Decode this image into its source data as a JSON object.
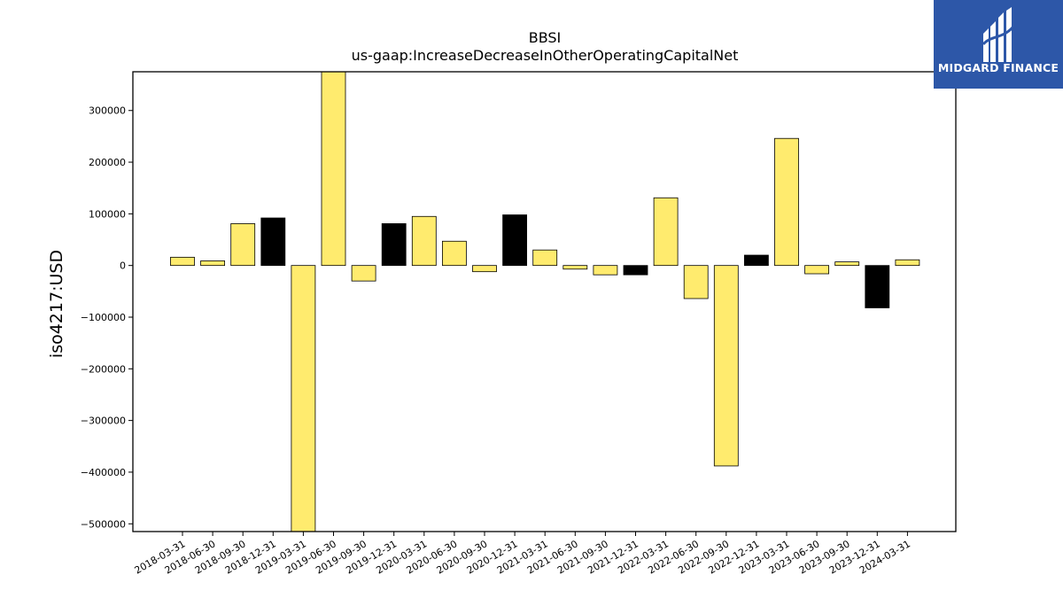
{
  "logo": {
    "text": "MIDGARD FINANCE"
  },
  "colors": {
    "positive_fill": "#ffeb6e",
    "highlight_fill": "#000000",
    "edge": "#000000"
  },
  "chart_data": {
    "type": "bar",
    "title": "BBSI",
    "subtitle": "us-gaap:IncreaseDecreaseInOtherOperatingCapitalNet",
    "ylabel": "iso4217:USD",
    "xlabel": "",
    "ylim": [
      -515000,
      375000
    ],
    "yticks": [
      300000,
      200000,
      100000,
      0,
      -100000,
      -200000,
      -300000,
      -400000,
      -500000
    ],
    "ytick_labels": [
      "300000",
      "200000",
      "100000",
      "0",
      "−100000",
      "−200000",
      "−300000",
      "−400000",
      "−500000"
    ],
    "grid": false,
    "categories": [
      "2018-03-31",
      "2018-06-30",
      "2018-09-30",
      "2018-12-31",
      "2019-03-31",
      "2019-06-30",
      "2019-09-30",
      "2019-12-31",
      "2020-03-31",
      "2020-06-30",
      "2020-09-30",
      "2020-12-31",
      "2021-03-31",
      "2021-06-30",
      "2021-09-30",
      "2021-12-31",
      "2022-03-31",
      "2022-06-30",
      "2022-09-30",
      "2022-12-31",
      "2023-03-31",
      "2023-06-30",
      "2023-09-30",
      "2023-12-31",
      "2024-03-31"
    ],
    "values": [
      16000,
      9000,
      81000,
      92000,
      -515000,
      375000,
      -30000,
      81000,
      95000,
      47000,
      -12000,
      98000,
      30000,
      -7000,
      -18000,
      -18000,
      131000,
      -64000,
      -388000,
      20000,
      246000,
      -16000,
      7000,
      -82000,
      11000
    ],
    "highlight": [
      false,
      false,
      false,
      true,
      false,
      false,
      false,
      true,
      false,
      false,
      false,
      true,
      false,
      false,
      false,
      true,
      false,
      false,
      false,
      true,
      false,
      false,
      false,
      true,
      false
    ]
  }
}
